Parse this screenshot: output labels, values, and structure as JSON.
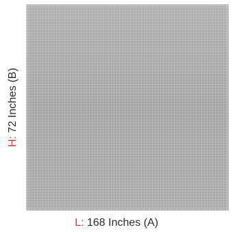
{
  "swatch": {
    "color": "#a8a8a8",
    "pattern": "fine-grid-mesh"
  },
  "dimensions": {
    "length": {
      "key": "L:",
      "value": " 168 Inches (A)"
    },
    "height": {
      "key": "H:",
      "value": " 72 Inches (B)"
    },
    "key_color": "#d93a3a"
  }
}
